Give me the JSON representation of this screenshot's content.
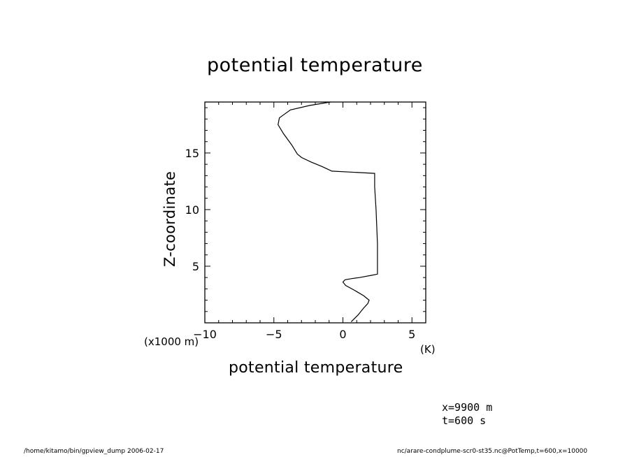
{
  "figure": {
    "title": "potential temperature",
    "info_x": "x=9900  m",
    "info_t": "t=600  s",
    "footer_left": "/home/kitamo/bin/gpview_dump   2006-02-17",
    "footer_right": "nc/arare-condplume-scr0-st35.nc@PotTemp,t=600,x=10000"
  },
  "chart_data": {
    "type": "line",
    "title": "potential temperature",
    "xlabel": "potential temperature",
    "x_unit": "(K)",
    "ylabel": "Z-coordinate",
    "y_unit": "(x1000 m)",
    "xlim": [
      -10,
      6
    ],
    "ylim": [
      0,
      19.5
    ],
    "x_ticks": [
      -10,
      -5,
      0,
      5
    ],
    "x_tick_labels": [
      "-10",
      "-5",
      "0",
      "5"
    ],
    "y_ticks": [
      5,
      10,
      15
    ],
    "y_tick_labels": [
      "5",
      "10",
      "15"
    ],
    "grid": false,
    "series": [
      {
        "x": [
          0.6,
          1.1,
          1.5,
          1.8,
          1.9,
          1.5,
          0.8,
          0.2,
          0.0,
          0.15,
          0.6,
          1.2,
          2.1,
          2.5,
          2.5,
          2.4,
          2.3,
          2.3,
          -0.8,
          -1.5,
          -2.3,
          -3.0,
          -3.3,
          -3.7,
          -4.3,
          -4.7,
          -4.6,
          -3.8,
          -2.4,
          -0.9
        ],
        "y": [
          0.1,
          0.7,
          1.3,
          1.7,
          2.0,
          2.4,
          2.9,
          3.3,
          3.6,
          3.8,
          3.9,
          4.0,
          4.2,
          4.3,
          7.0,
          10.0,
          12.0,
          13.2,
          13.4,
          13.8,
          14.2,
          14.6,
          14.9,
          15.7,
          16.7,
          17.5,
          18.1,
          18.8,
          19.2,
          19.5
        ]
      }
    ]
  }
}
